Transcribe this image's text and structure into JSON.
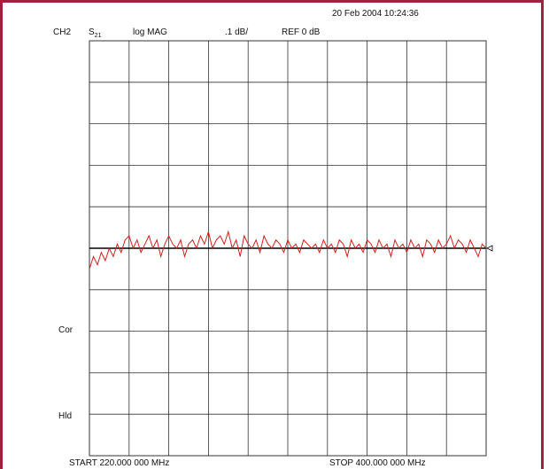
{
  "header": {
    "timestamp": "20 Feb 2004  10:24:36",
    "channel": "CH2",
    "sparam_base": "S",
    "sparam_sub": "21",
    "format": "log MAG",
    "scale": ".1 dB/",
    "reference": "REF 0 dB"
  },
  "status": {
    "correction": "Cor",
    "hold": "Hld"
  },
  "footer": {
    "start": "START  220.000 000 MHz",
    "stop": "STOP  400.000 000 MHz"
  },
  "colors": {
    "frame": "#a02040",
    "trace": "#d42020",
    "grid": "#333333",
    "reference_line": "#000000"
  },
  "chart_data": {
    "type": "line",
    "title": "",
    "xlabel": "",
    "ylabel": "",
    "x_unit": "MHz",
    "y_unit": "dB",
    "xlim": [
      220,
      400
    ],
    "ylim": [
      -0.5,
      0.5
    ],
    "divisions_x": 10,
    "divisions_y": 10,
    "reference_level_db": 0,
    "grid": true,
    "series": [
      {
        "name": "",
        "x": [
          220,
          221.8,
          223.6,
          225.4,
          227.2,
          229,
          230.8,
          232.6,
          234.4,
          236.2,
          238,
          239.8,
          241.6,
          243.4,
          245.2,
          247,
          248.8,
          250.6,
          252.4,
          254.2,
          256,
          257.8,
          259.6,
          261.4,
          263.2,
          265,
          266.8,
          268.6,
          270.4,
          272.2,
          274,
          275.8,
          277.6,
          279.4,
          281.2,
          283,
          284.8,
          286.6,
          288.4,
          290.2,
          292,
          293.8,
          295.6,
          297.4,
          299.2,
          301,
          302.8,
          304.6,
          306.4,
          308.2,
          310,
          311.8,
          313.6,
          315.4,
          317.2,
          319,
          320.8,
          322.6,
          324.4,
          326.2,
          328,
          329.8,
          331.6,
          333.4,
          335.2,
          337,
          338.8,
          340.6,
          342.4,
          344.2,
          346,
          347.8,
          349.6,
          351.4,
          353.2,
          355,
          356.8,
          358.6,
          360.4,
          362.2,
          364,
          365.8,
          367.6,
          369.4,
          371.2,
          373,
          374.8,
          376.6,
          378.4,
          380.2,
          382,
          383.8,
          385.6,
          387.4,
          389.2,
          391,
          392.8,
          394.6,
          396.4,
          398.2,
          400
        ],
        "y": [
          -0.05,
          -0.02,
          -0.04,
          -0.01,
          -0.03,
          0.0,
          -0.02,
          0.01,
          -0.01,
          0.02,
          0.03,
          0.0,
          0.02,
          -0.01,
          0.01,
          0.03,
          0.0,
          0.02,
          -0.02,
          0.01,
          0.03,
          0.01,
          0.0,
          0.02,
          -0.02,
          0.01,
          0.02,
          0.0,
          0.03,
          0.01,
          0.04,
          0.0,
          0.02,
          0.03,
          0.01,
          0.04,
          0.0,
          0.02,
          -0.02,
          0.03,
          0.01,
          0.0,
          0.02,
          -0.01,
          0.03,
          0.01,
          0.0,
          0.02,
          0.01,
          -0.01,
          0.02,
          0.0,
          0.01,
          -0.01,
          0.02,
          0.01,
          0.0,
          0.01,
          -0.01,
          0.02,
          0.0,
          0.01,
          -0.01,
          0.02,
          0.01,
          -0.02,
          0.02,
          0.0,
          0.01,
          -0.01,
          0.02,
          0.01,
          -0.01,
          0.02,
          0.0,
          0.01,
          -0.02,
          0.02,
          0.0,
          0.01,
          -0.01,
          0.02,
          0.0,
          0.01,
          -0.02,
          0.02,
          0.01,
          -0.01,
          0.02,
          0.0,
          0.01,
          0.03,
          0.0,
          0.02,
          0.01,
          -0.01,
          0.02,
          0.0,
          -0.02,
          0.01,
          0.0
        ]
      }
    ]
  }
}
